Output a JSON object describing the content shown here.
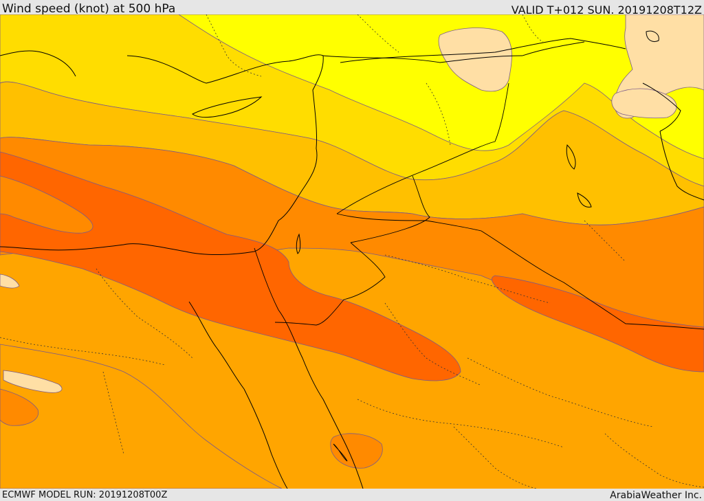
{
  "header": {
    "title": "Wind speed (knot) at 500 hPa",
    "valid": "VALID T+012 SUN. 20191208T12Z"
  },
  "footer": {
    "model_run": "ECMWF MODEL RUN: 20191208T00Z",
    "credit": "ArabiaWeather Inc."
  },
  "map": {
    "colors": {
      "band_lightest": "#ffdfa5",
      "band_bright_yellow": "#ffff00",
      "band_yellow": "#ffdd00",
      "band_gold": "#ffc000",
      "band_amber": "#ffa500",
      "band_orange": "#ff8a00",
      "band_deep_orange": "#ff6600",
      "contour_line": "#7a5a8a",
      "coastline": "#000000",
      "border_dotted": "#333333"
    }
  }
}
